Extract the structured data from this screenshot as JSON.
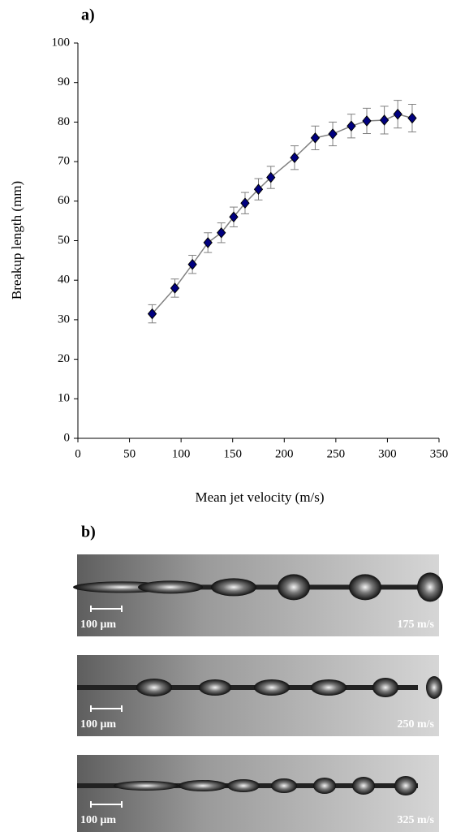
{
  "chart_data": {
    "type": "line",
    "xlabel": "Mean jet velocity (m/s)",
    "ylabel": "Breakup length (mm)",
    "x": [
      72,
      94,
      111,
      126,
      139,
      151,
      162,
      175,
      187,
      210,
      230,
      247,
      265,
      280,
      297,
      310,
      324
    ],
    "values": [
      31.5,
      38,
      44,
      49.5,
      52,
      56,
      59.5,
      63,
      66,
      71,
      76,
      77,
      79,
      80.3,
      80.5,
      82,
      81
    ],
    "errors": [
      2.3,
      2.3,
      2.3,
      2.5,
      2.5,
      2.5,
      2.7,
      2.7,
      2.8,
      3,
      3,
      3,
      3,
      3.2,
      3.5,
      3.5,
      3.5
    ],
    "color": "#000080",
    "line_color": "#808080",
    "error_color": "#808080",
    "xlim": [
      0,
      350
    ],
    "xticks": [
      0,
      50,
      100,
      150,
      200,
      250,
      300,
      350
    ],
    "ylim": [
      0,
      100
    ],
    "yticks": [
      0,
      10,
      20,
      30,
      40,
      50,
      60,
      70,
      80,
      90,
      100
    ]
  },
  "panels": {
    "a": "a)",
    "b": "b)"
  },
  "images": [
    {
      "scale": "100 μm",
      "speed": "175 m/s"
    },
    {
      "scale": "100 μm",
      "speed": "250 m/s"
    },
    {
      "scale": "100 μm",
      "speed": "325 m/s"
    }
  ]
}
